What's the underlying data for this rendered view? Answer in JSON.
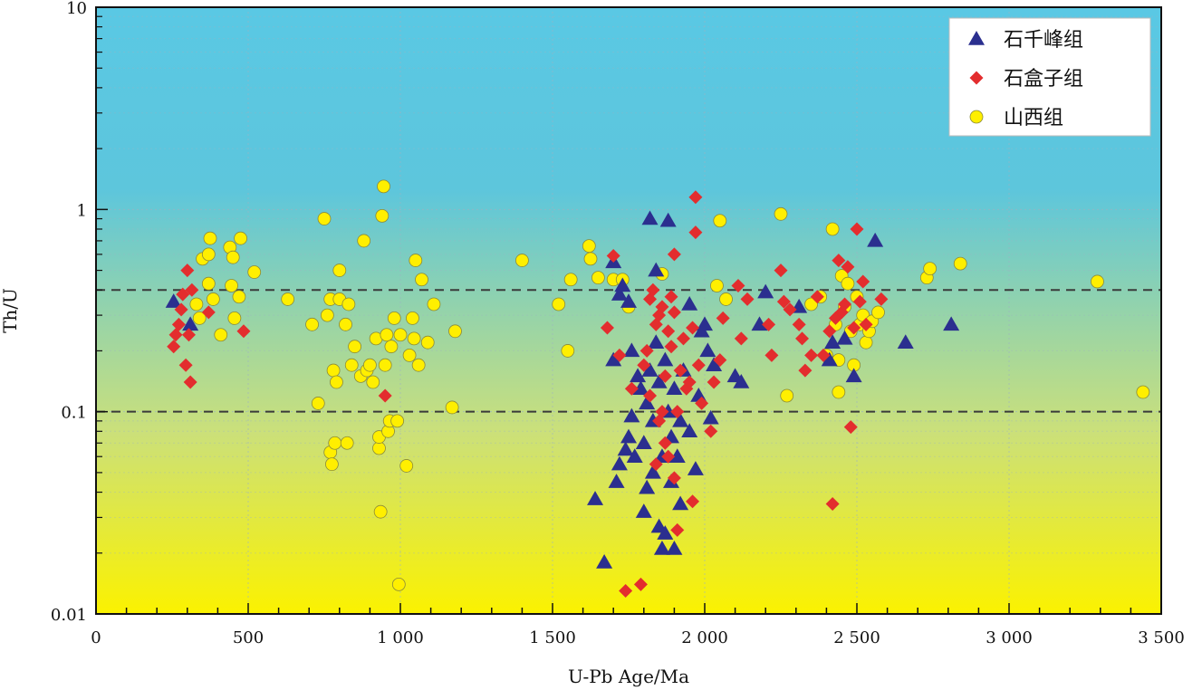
{
  "chart_data": {
    "type": "scatter",
    "xlabel": "U-Pb Age/Ma",
    "ylabel": "Th/U",
    "xlim": [
      0,
      3500
    ],
    "ylim": [
      0.01,
      10
    ],
    "yscale": "log",
    "x_ticks": [
      {
        "value": 0,
        "label": "0"
      },
      {
        "value": 500,
        "label": "500"
      },
      {
        "value": 1000,
        "label": "1 000"
      },
      {
        "value": 1500,
        "label": "1 500"
      },
      {
        "value": 2000,
        "label": "2 000"
      },
      {
        "value": 2500,
        "label": "2 500"
      },
      {
        "value": 3000,
        "label": "3 000"
      },
      {
        "value": 3500,
        "label": "3 500"
      }
    ],
    "y_ticks": [
      {
        "value": 0.01,
        "label": "0.01"
      },
      {
        "value": 0.1,
        "label": "0.1"
      },
      {
        "value": 1,
        "label": "1"
      },
      {
        "value": 10,
        "label": "10"
      }
    ],
    "reference_lines": [
      0.4,
      0.1
    ],
    "legend_position": "top-right",
    "background_gradient": [
      "#5ac8e4",
      "#5dc6dc",
      "#cbe07a",
      "#fbf200"
    ],
    "series": [
      {
        "name": "石千峰组",
        "marker": "triangle",
        "color": "#2b2f8f",
        "points": [
          [
            255,
            0.35
          ],
          [
            310,
            0.27
          ],
          [
            1640,
            0.037
          ],
          [
            1670,
            0.018
          ],
          [
            1700,
            0.18
          ],
          [
            1710,
            0.045
          ],
          [
            1720,
            0.055
          ],
          [
            1740,
            0.065
          ],
          [
            1750,
            0.075
          ],
          [
            1760,
            0.095
          ],
          [
            1700,
            0.55
          ],
          [
            1720,
            0.38
          ],
          [
            1730,
            0.42
          ],
          [
            1750,
            0.35
          ],
          [
            1760,
            0.2
          ],
          [
            1770,
            0.06
          ],
          [
            1780,
            0.15
          ],
          [
            1790,
            0.13
          ],
          [
            1800,
            0.07
          ],
          [
            1800,
            0.032
          ],
          [
            1810,
            0.042
          ],
          [
            1810,
            0.11
          ],
          [
            1820,
            0.16
          ],
          [
            1820,
            0.9
          ],
          [
            1830,
            0.09
          ],
          [
            1830,
            0.05
          ],
          [
            1840,
            0.5
          ],
          [
            1840,
            0.22
          ],
          [
            1850,
            0.14
          ],
          [
            1850,
            0.027
          ],
          [
            1860,
            0.021
          ],
          [
            1860,
            0.06
          ],
          [
            1870,
            0.025
          ],
          [
            1870,
            0.18
          ],
          [
            1880,
            0.88
          ],
          [
            1880,
            0.1
          ],
          [
            1890,
            0.075
          ],
          [
            1890,
            0.045
          ],
          [
            1900,
            0.021
          ],
          [
            1900,
            0.13
          ],
          [
            1910,
            0.06
          ],
          [
            1920,
            0.035
          ],
          [
            1920,
            0.09
          ],
          [
            1930,
            0.16
          ],
          [
            1950,
            0.34
          ],
          [
            1950,
            0.08
          ],
          [
            1970,
            0.052
          ],
          [
            1980,
            0.12
          ],
          [
            1990,
            0.25
          ],
          [
            2000,
            0.27
          ],
          [
            2010,
            0.2
          ],
          [
            2020,
            0.093
          ],
          [
            2030,
            0.17
          ],
          [
            2100,
            0.15
          ],
          [
            2120,
            0.14
          ],
          [
            2180,
            0.27
          ],
          [
            2200,
            0.39
          ],
          [
            2310,
            0.33
          ],
          [
            2410,
            0.18
          ],
          [
            2420,
            0.22
          ],
          [
            2460,
            0.23
          ],
          [
            2490,
            0.15
          ],
          [
            2560,
            0.7
          ],
          [
            2660,
            0.22
          ],
          [
            2810,
            0.27
          ]
        ]
      },
      {
        "name": "石盒子组",
        "marker": "diamond",
        "color": "#e32d2e",
        "points": [
          [
            255,
            0.21
          ],
          [
            262,
            0.24
          ],
          [
            272,
            0.27
          ],
          [
            280,
            0.32
          ],
          [
            285,
            0.38
          ],
          [
            295,
            0.17
          ],
          [
            300,
            0.5
          ],
          [
            305,
            0.24
          ],
          [
            310,
            0.14
          ],
          [
            315,
            0.4
          ],
          [
            370,
            0.31
          ],
          [
            485,
            0.25
          ],
          [
            950,
            0.12
          ],
          [
            1680,
            0.26
          ],
          [
            1700,
            0.59
          ],
          [
            1720,
            0.19
          ],
          [
            1740,
            0.013
          ],
          [
            1760,
            0.13
          ],
          [
            1790,
            0.014
          ],
          [
            1800,
            0.17
          ],
          [
            1810,
            0.2
          ],
          [
            1820,
            0.36
          ],
          [
            1820,
            0.12
          ],
          [
            1830,
            0.4
          ],
          [
            1840,
            0.27
          ],
          [
            1840,
            0.055
          ],
          [
            1850,
            0.3
          ],
          [
            1850,
            0.09
          ],
          [
            1860,
            0.33
          ],
          [
            1860,
            0.1
          ],
          [
            1870,
            0.15
          ],
          [
            1870,
            0.07
          ],
          [
            1880,
            0.25
          ],
          [
            1880,
            0.06
          ],
          [
            1890,
            0.21
          ],
          [
            1890,
            0.37
          ],
          [
            1900,
            0.31
          ],
          [
            1900,
            0.6
          ],
          [
            1900,
            0.047
          ],
          [
            1910,
            0.026
          ],
          [
            1910,
            0.1
          ],
          [
            1920,
            0.16
          ],
          [
            1930,
            0.23
          ],
          [
            1940,
            0.13
          ],
          [
            1950,
            0.14
          ],
          [
            1960,
            0.036
          ],
          [
            1960,
            0.26
          ],
          [
            1970,
            0.77
          ],
          [
            1970,
            1.15
          ],
          [
            1980,
            0.17
          ],
          [
            1990,
            0.11
          ],
          [
            2020,
            0.08
          ],
          [
            2030,
            0.14
          ],
          [
            2050,
            0.18
          ],
          [
            2060,
            0.29
          ],
          [
            2110,
            0.42
          ],
          [
            2120,
            0.23
          ],
          [
            2140,
            0.36
          ],
          [
            2210,
            0.27
          ],
          [
            2220,
            0.19
          ],
          [
            2250,
            0.5
          ],
          [
            2260,
            0.35
          ],
          [
            2280,
            0.32
          ],
          [
            2310,
            0.27
          ],
          [
            2320,
            0.23
          ],
          [
            2330,
            0.16
          ],
          [
            2350,
            0.19
          ],
          [
            2370,
            0.37
          ],
          [
            2390,
            0.19
          ],
          [
            2410,
            0.25
          ],
          [
            2420,
            0.035
          ],
          [
            2430,
            0.29
          ],
          [
            2440,
            0.56
          ],
          [
            2450,
            0.31
          ],
          [
            2460,
            0.34
          ],
          [
            2470,
            0.52
          ],
          [
            2480,
            0.084
          ],
          [
            2490,
            0.26
          ],
          [
            2500,
            0.8
          ],
          [
            2510,
            0.35
          ],
          [
            2520,
            0.44
          ],
          [
            2530,
            0.27
          ],
          [
            2580,
            0.36
          ]
        ]
      },
      {
        "name": "山西组",
        "marker": "circle",
        "color": "#ffef00",
        "points": [
          [
            330,
            0.34
          ],
          [
            340,
            0.29
          ],
          [
            350,
            0.57
          ],
          [
            370,
            0.6
          ],
          [
            370,
            0.43
          ],
          [
            375,
            0.72
          ],
          [
            385,
            0.36
          ],
          [
            410,
            0.24
          ],
          [
            440,
            0.65
          ],
          [
            445,
            0.42
          ],
          [
            450,
            0.58
          ],
          [
            455,
            0.29
          ],
          [
            470,
            0.37
          ],
          [
            475,
            0.72
          ],
          [
            520,
            0.49
          ],
          [
            630,
            0.36
          ],
          [
            710,
            0.27
          ],
          [
            730,
            0.11
          ],
          [
            750,
            0.9
          ],
          [
            760,
            0.3
          ],
          [
            770,
            0.36
          ],
          [
            770,
            0.063
          ],
          [
            775,
            0.055
          ],
          [
            780,
            0.16
          ],
          [
            785,
            0.07
          ],
          [
            790,
            0.14
          ],
          [
            800,
            0.36
          ],
          [
            800,
            0.5
          ],
          [
            820,
            0.27
          ],
          [
            825,
            0.07
          ],
          [
            830,
            0.34
          ],
          [
            840,
            0.17
          ],
          [
            850,
            0.21
          ],
          [
            870,
            0.15
          ],
          [
            880,
            0.7
          ],
          [
            890,
            0.16
          ],
          [
            900,
            0.17
          ],
          [
            910,
            0.14
          ],
          [
            920,
            0.23
          ],
          [
            930,
            0.066
          ],
          [
            930,
            0.075
          ],
          [
            935,
            0.032
          ],
          [
            940,
            0.93
          ],
          [
            945,
            1.3
          ],
          [
            950,
            0.17
          ],
          [
            955,
            0.24
          ],
          [
            960,
            0.08
          ],
          [
            965,
            0.09
          ],
          [
            970,
            0.21
          ],
          [
            980,
            0.29
          ],
          [
            990,
            0.09
          ],
          [
            995,
            0.014
          ],
          [
            1000,
            0.24
          ],
          [
            1020,
            0.054
          ],
          [
            1030,
            0.19
          ],
          [
            1040,
            0.29
          ],
          [
            1045,
            0.23
          ],
          [
            1050,
            0.56
          ],
          [
            1060,
            0.17
          ],
          [
            1070,
            0.45
          ],
          [
            1090,
            0.22
          ],
          [
            1110,
            0.34
          ],
          [
            1170,
            0.105
          ],
          [
            1180,
            0.25
          ],
          [
            1400,
            0.56
          ],
          [
            1520,
            0.34
          ],
          [
            1550,
            0.2
          ],
          [
            1560,
            0.45
          ],
          [
            1620,
            0.66
          ],
          [
            1625,
            0.57
          ],
          [
            1650,
            0.46
          ],
          [
            1700,
            0.45
          ],
          [
            1730,
            0.45
          ],
          [
            1750,
            0.33
          ],
          [
            1860,
            0.48
          ],
          [
            2040,
            0.42
          ],
          [
            2050,
            0.88
          ],
          [
            2070,
            0.36
          ],
          [
            2250,
            0.95
          ],
          [
            2270,
            0.12
          ],
          [
            2350,
            0.34
          ],
          [
            2380,
            0.37
          ],
          [
            2400,
            0.19
          ],
          [
            2420,
            0.8
          ],
          [
            2430,
            0.27
          ],
          [
            2440,
            0.18
          ],
          [
            2440,
            0.125
          ],
          [
            2450,
            0.47
          ],
          [
            2460,
            0.33
          ],
          [
            2470,
            0.43
          ],
          [
            2480,
            0.25
          ],
          [
            2490,
            0.17
          ],
          [
            2500,
            0.37
          ],
          [
            2510,
            0.27
          ],
          [
            2520,
            0.3
          ],
          [
            2530,
            0.22
          ],
          [
            2540,
            0.25
          ],
          [
            2550,
            0.28
          ],
          [
            2570,
            0.31
          ],
          [
            2730,
            0.46
          ],
          [
            2740,
            0.51
          ],
          [
            2840,
            0.54
          ],
          [
            3290,
            0.44
          ],
          [
            3440,
            0.125
          ]
        ]
      }
    ]
  }
}
